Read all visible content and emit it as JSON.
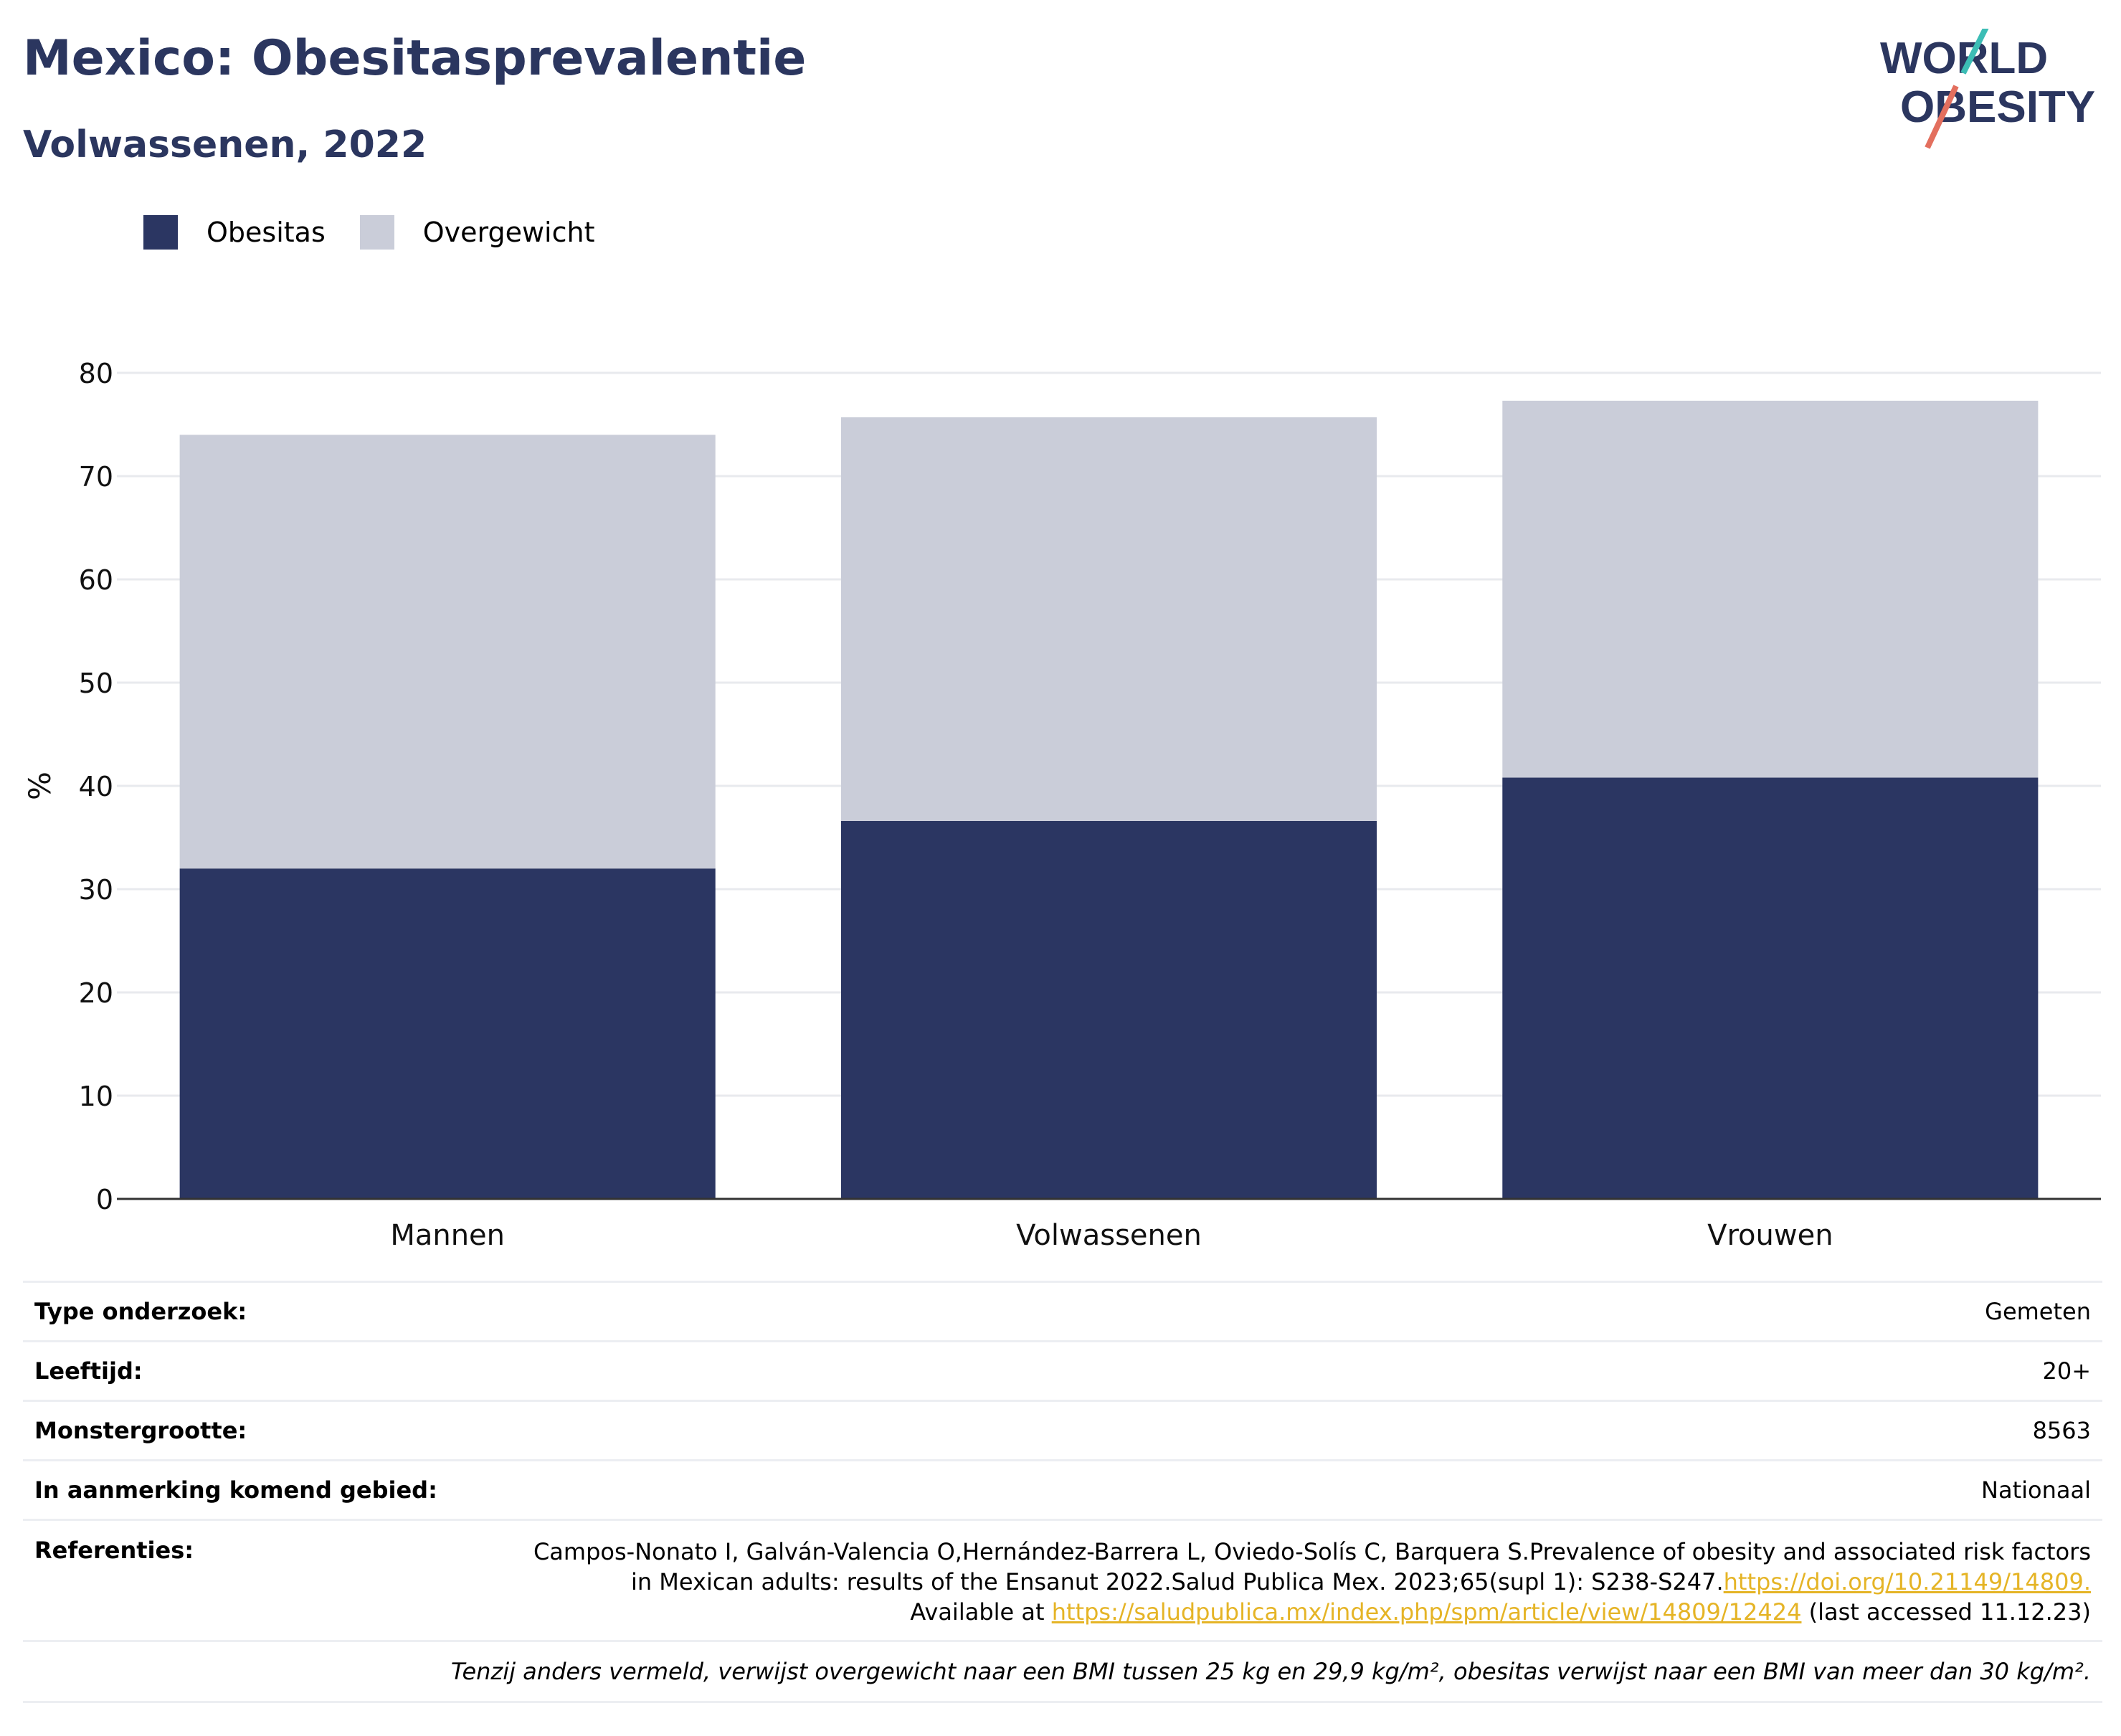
{
  "title": "Mexico: Obesitasprevalentie",
  "subtitle": "Volwassenen, 2022",
  "logo": {
    "line1": "WORLD",
    "line2": "OBESITY"
  },
  "legend": [
    {
      "label": "Obesitas",
      "color": "#2b3662"
    },
    {
      "label": "Overgewicht",
      "color": "#cacdd9"
    }
  ],
  "chart_data": {
    "type": "bar",
    "stacked": true,
    "categories": [
      "Mannen",
      "Volwassenen",
      "Vrouwen"
    ],
    "series": [
      {
        "name": "Obesitas",
        "color": "#2b3662",
        "values": [
          32.0,
          36.6,
          40.8
        ]
      },
      {
        "name": "Overgewicht",
        "color": "#cacdd9",
        "values": [
          42.0,
          39.1,
          36.5
        ]
      }
    ],
    "ylabel": "%",
    "xlabel": "",
    "ylim": [
      0,
      80
    ],
    "yticks": [
      0,
      10,
      20,
      30,
      40,
      50,
      60,
      70,
      80
    ],
    "grid": true,
    "legend_position": "top-left"
  },
  "info": {
    "rows": [
      {
        "label": "Type onderzoek:",
        "value": "Gemeten"
      },
      {
        "label": "Leeftijd:",
        "value": "20+"
      },
      {
        "label": "Monstergrootte:",
        "value": "8563"
      },
      {
        "label": "In aanmerking komend gebied:",
        "value": "Nationaal"
      }
    ],
    "references": {
      "label": "Referenties:",
      "line1": "Campos-Nonato I, Galván-Valencia O,Hernández-Barrera L, Oviedo-Solís C, Barquera S.Prevalence of obesity and associated risk factors",
      "line2_text": "in Mexican adults: results of the Ensanut 2022.Salud Publica Mex. 2023;65(supl 1): S238-S247.",
      "line2_link": "https://doi.org/10.21149/14809.",
      "line3_pre": "Available at ",
      "line3_link": "https://saludpublica.mx/index.php/spm/article/view/14809/12424",
      "line3_post": " (last accessed 11.12.23)"
    },
    "note": "Tenzij anders vermeld, verwijst overgewicht naar een BMI tussen 25 kg en 29,9 kg/m², obesitas verwijst naar een BMI van meer dan 30 kg/m²."
  }
}
